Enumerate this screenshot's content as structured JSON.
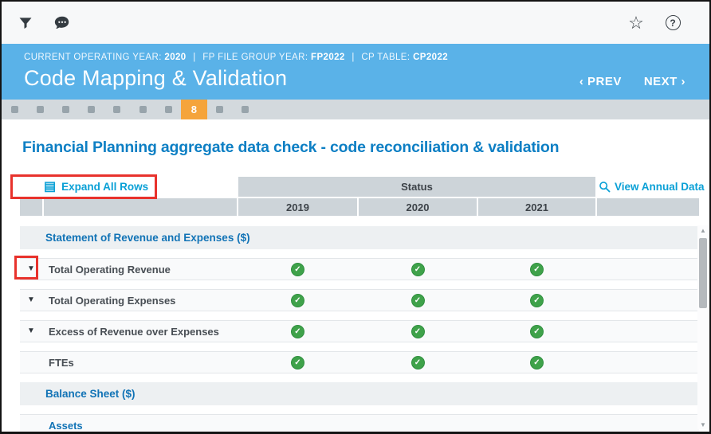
{
  "topbar": {
    "star_glyph": "☆",
    "help_glyph": "?"
  },
  "header": {
    "meta": [
      {
        "label": "CURRENT OPERATING YEAR:",
        "value": "2020"
      },
      {
        "label": "FP FILE GROUP YEAR:",
        "value": "FP2022"
      },
      {
        "label": "CP TABLE:",
        "value": "CP2022"
      }
    ],
    "separator": "|",
    "title": "Code Mapping & Validation",
    "prev_label": "‹ PREV",
    "next_label": "NEXT ›"
  },
  "stepper": {
    "count": 10,
    "active_index": 7,
    "active_label": "8"
  },
  "main": {
    "heading": "Financial Planning aggregate data check - code reconciliation & validation",
    "expand_all_label": "Expand All Rows",
    "view_annual_label": "View Annual Data",
    "table": {
      "status_header": "Status",
      "years": [
        "2019",
        "2020",
        "2021"
      ],
      "sections": [
        {
          "title": "Statement of Revenue and Expenses ($)",
          "rows": [
            {
              "label": "Total Operating Revenue",
              "expandable": true,
              "status": [
                "ok",
                "ok",
                "ok"
              ]
            },
            {
              "label": "Total Operating Expenses",
              "expandable": true,
              "status": [
                "ok",
                "ok",
                "ok"
              ]
            },
            {
              "label": "Excess of Revenue over Expenses",
              "expandable": true,
              "status": [
                "ok",
                "ok",
                "ok"
              ]
            },
            {
              "label": "FTEs",
              "expandable": false,
              "status": [
                "ok",
                "ok",
                "ok"
              ]
            }
          ]
        },
        {
          "title": "Balance Sheet ($)",
          "rows": [
            {
              "label": "Assets",
              "expandable": false,
              "link_style": true,
              "status": []
            }
          ]
        }
      ]
    }
  },
  "icons": {
    "expander": "▼",
    "check": "✓",
    "table_glyph": "▤",
    "scroll_up": "▲",
    "scroll_down": "▼"
  },
  "colors": {
    "header_blue": "#5ab2e8",
    "accent_cyan": "#0aa0d6",
    "heading_blue": "#0d7fc4",
    "section_blue": "#1173b6",
    "active_step_orange": "#f5a43b",
    "status_green": "#3fa24a",
    "annotation_red": "#e8322c",
    "header_cell_gray": "#cdd4d9"
  }
}
